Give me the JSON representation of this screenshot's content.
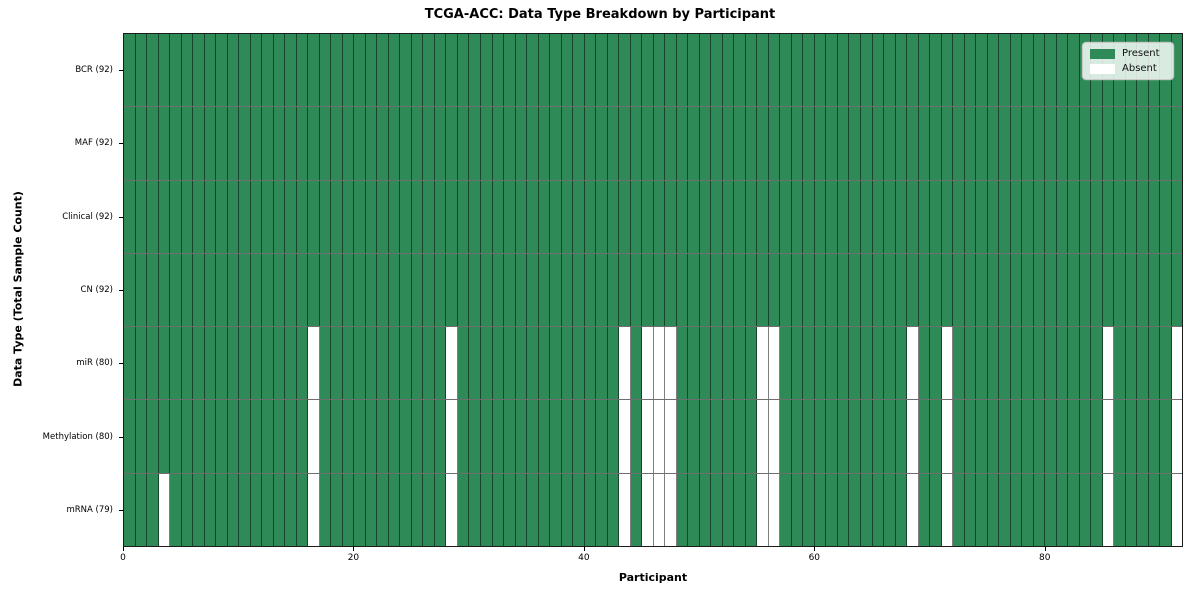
{
  "title": "TCGA-ACC: Data Type Breakdown by Participant",
  "legend": {
    "present_label": "Present",
    "absent_label": "Absent"
  },
  "colors": {
    "present": "#2e8b57",
    "absent": "#ffffff",
    "cell_edge": "rgba(0,0,0,0.5)",
    "spine": "#1a1a1a"
  },
  "chart_data": {
    "type": "heatmap",
    "title": "TCGA-ACC: Data Type Breakdown by Participant",
    "xlabel": "Participant",
    "ylabel": "Data Type (Total Sample Count)",
    "legend_entries": [
      "Present",
      "Absent"
    ],
    "legend_position": "upper right",
    "n_participants": 92,
    "x_ticks": [
      0,
      20,
      40,
      60,
      80
    ],
    "xlim": [
      0,
      92
    ],
    "grid": "cell-edges",
    "cell_states": [
      "present",
      "absent"
    ],
    "rows": [
      {
        "label": "BCR (92)",
        "data_type": "BCR",
        "present_count": 92,
        "absent_participants": []
      },
      {
        "label": "MAF (92)",
        "data_type": "MAF",
        "present_count": 92,
        "absent_participants": []
      },
      {
        "label": "Clinical (92)",
        "data_type": "Clinical",
        "present_count": 92,
        "absent_participants": []
      },
      {
        "label": "CN (92)",
        "data_type": "CN",
        "present_count": 92,
        "absent_participants": []
      },
      {
        "label": "miR (80)",
        "data_type": "miR",
        "present_count": 80,
        "absent_participants": [
          16,
          28,
          43,
          45,
          46,
          47,
          55,
          56,
          68,
          71,
          85,
          91
        ]
      },
      {
        "label": "Methylation (80)",
        "data_type": "Methylation",
        "present_count": 80,
        "absent_participants": [
          16,
          28,
          43,
          45,
          46,
          47,
          55,
          56,
          68,
          71,
          85,
          91
        ]
      },
      {
        "label": "mRNA (79)",
        "data_type": "mRNA",
        "present_count": 79,
        "absent_participants": [
          3,
          16,
          28,
          43,
          45,
          46,
          47,
          55,
          56,
          68,
          71,
          85,
          91
        ]
      }
    ]
  }
}
